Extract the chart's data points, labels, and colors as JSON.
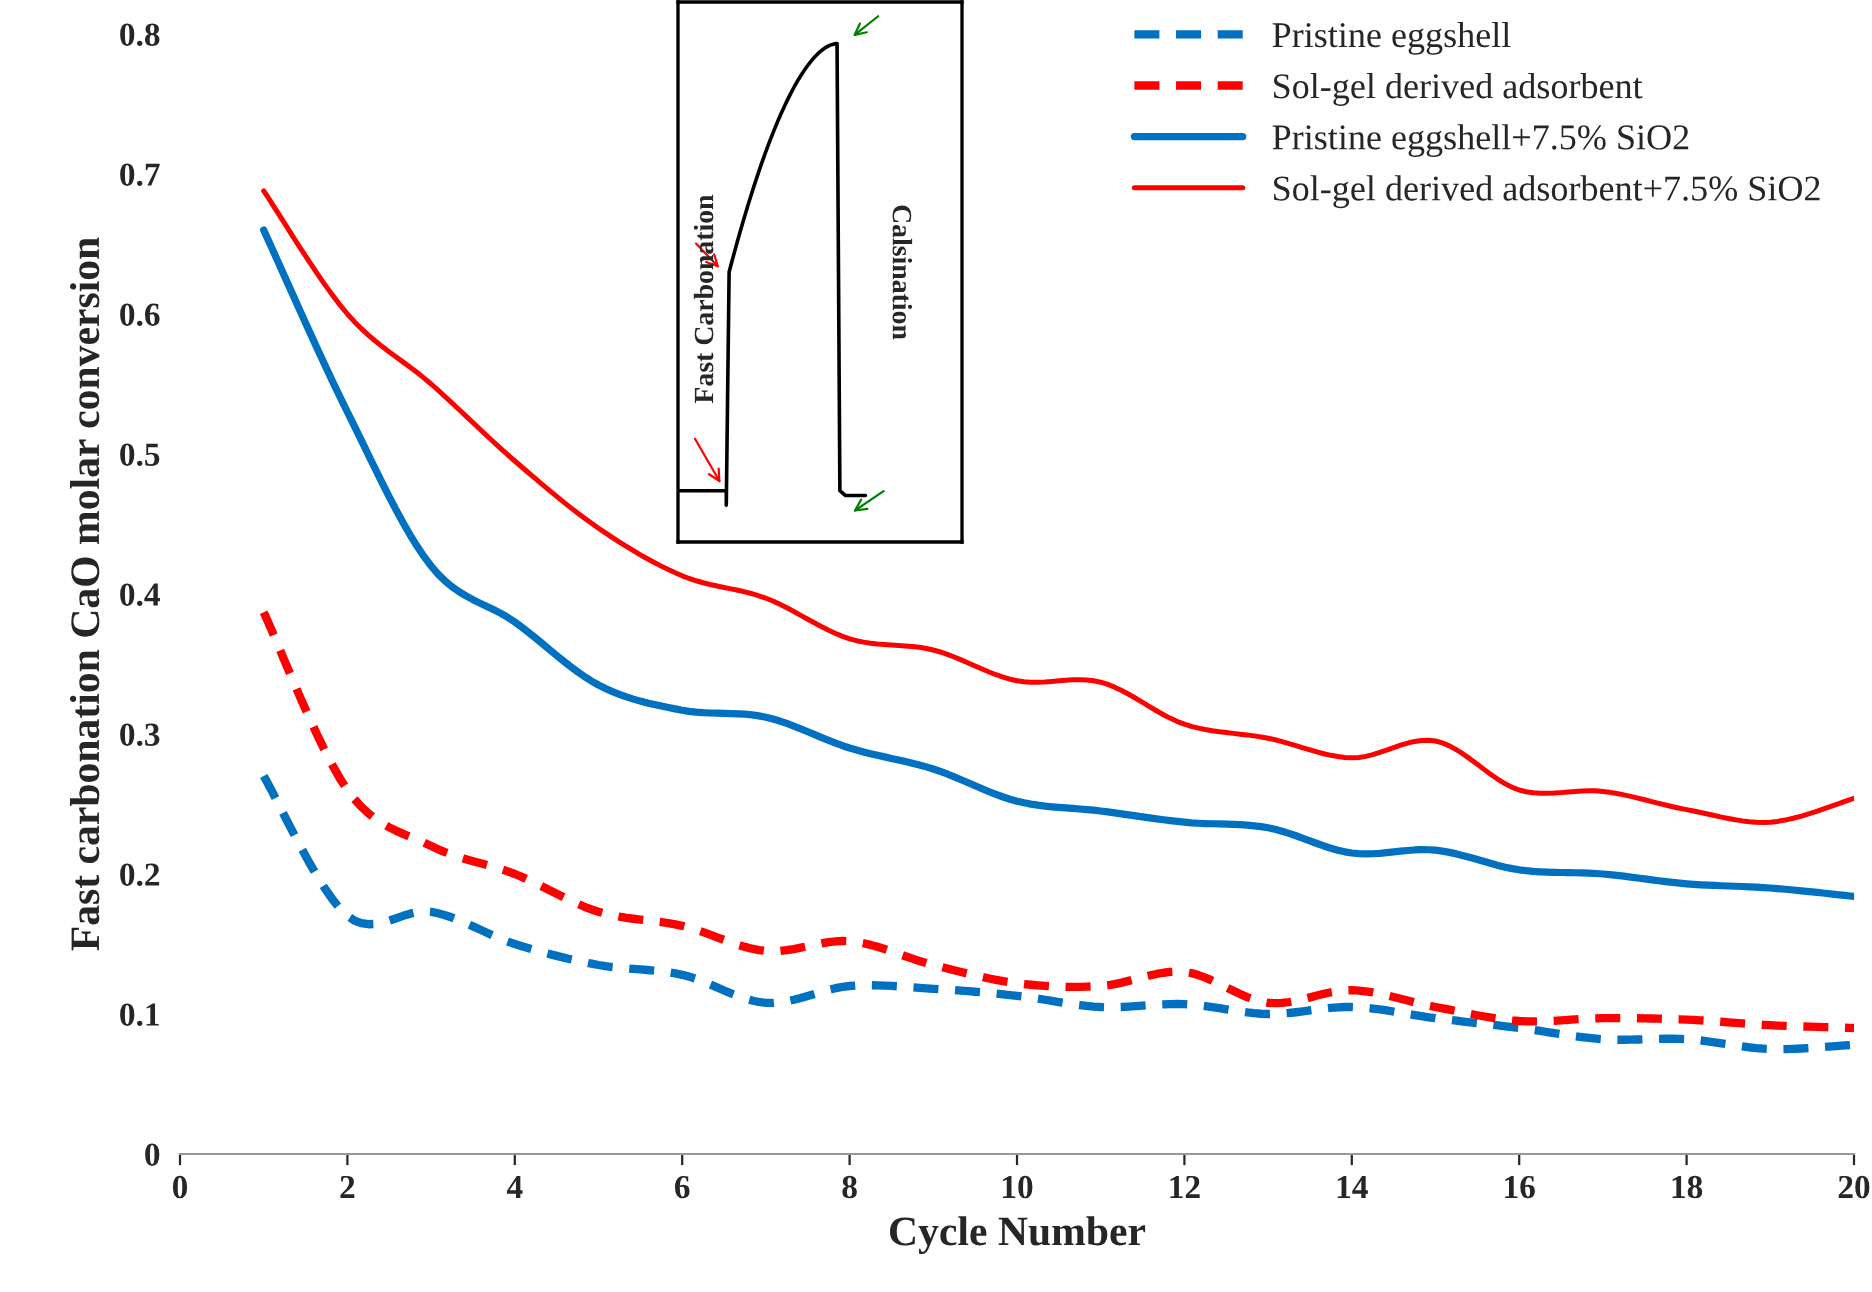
{
  "chart_data": {
    "type": "line",
    "xlabel": "Cycle Number",
    "ylabel": "Fast carbonation CaO molar conversion",
    "x": [
      1,
      2,
      3,
      4,
      5,
      6,
      7,
      8,
      9,
      10,
      11,
      12,
      13,
      14,
      15,
      16,
      17,
      18,
      19,
      20
    ],
    "series": [
      {
        "name": "Pristine eggshell",
        "color": "#0070c0",
        "line_style": "dashed",
        "values": [
          0.27,
          0.17,
          0.173,
          0.15,
          0.135,
          0.128,
          0.108,
          0.12,
          0.118,
          0.113,
          0.105,
          0.107,
          0.1,
          0.105,
          0.097,
          0.09,
          0.082,
          0.082,
          0.075,
          0.078
        ]
      },
      {
        "name": "Sol-gel derived adsorbent",
        "color": "#ff0000",
        "line_style": "dashed",
        "values": [
          0.387,
          0.26,
          0.22,
          0.2,
          0.173,
          0.163,
          0.145,
          0.152,
          0.135,
          0.122,
          0.12,
          0.13,
          0.108,
          0.117,
          0.105,
          0.095,
          0.097,
          0.096,
          0.092,
          0.09
        ]
      },
      {
        "name": "Pristine eggshell+7.5% SiO2",
        "color": "#0070c0",
        "line_style": "solid",
        "values": [
          0.66,
          0.53,
          0.42,
          0.38,
          0.335,
          0.317,
          0.312,
          0.29,
          0.275,
          0.252,
          0.245,
          0.237,
          0.233,
          0.215,
          0.217,
          0.203,
          0.2,
          0.193,
          0.19,
          0.184
        ]
      },
      {
        "name": "Sol-gel derived adsorbent+7.5% SiO2",
        "color": "#ff0000",
        "line_style": "solid",
        "values": [
          0.688,
          0.6,
          0.55,
          0.495,
          0.447,
          0.413,
          0.397,
          0.368,
          0.36,
          0.338,
          0.337,
          0.307,
          0.297,
          0.283,
          0.295,
          0.26,
          0.259,
          0.246,
          0.237,
          0.254
        ]
      }
    ],
    "xlim": [
      0,
      20
    ],
    "xticks": [
      0,
      2,
      4,
      6,
      8,
      10,
      12,
      14,
      16,
      18,
      20
    ],
    "ylim": [
      0,
      0.8
    ],
    "yticks": [
      0,
      0.1,
      0.2,
      0.3,
      0.4,
      0.5,
      0.6,
      0.7,
      0.8
    ],
    "grid": false,
    "legend": "top right",
    "marker": "none",
    "annotations": [
      "Fast Carbonation",
      "Calsination"
    ]
  }
}
